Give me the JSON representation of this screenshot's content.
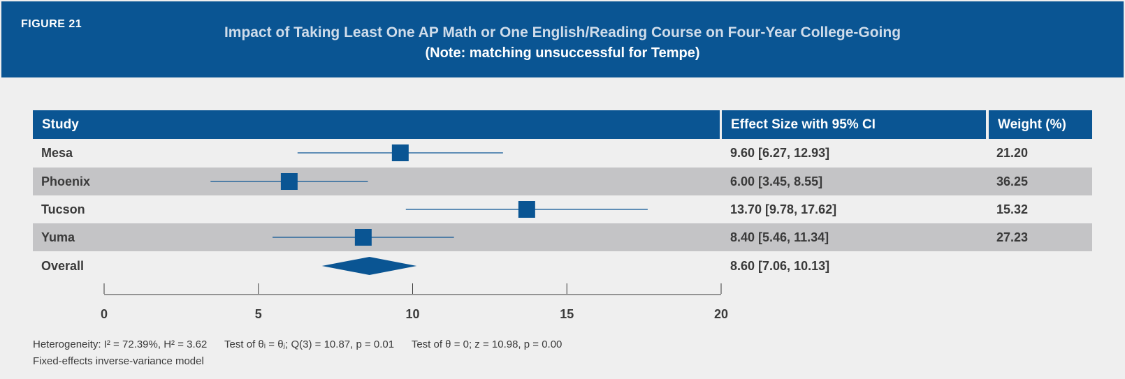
{
  "figure_label": "FIGURE 21",
  "chart_data": {
    "type": "forest",
    "title": "Impact of Taking Least One AP Math or One English/Reading Course on Four-Year College-Going",
    "subtitle": "(Note: matching unsuccessful for Tempe)",
    "columns": {
      "study": "Study",
      "effect": "Effect Size with 95% CI",
      "weight": "Weight (%)"
    },
    "studies": [
      {
        "name": "Mesa",
        "estimate": 9.6,
        "ci_low": 6.27,
        "ci_high": 12.93,
        "effect_label": "9.60 [6.27, 12.93]",
        "weight": "21.20"
      },
      {
        "name": "Phoenix",
        "estimate": 6.0,
        "ci_low": 3.45,
        "ci_high": 8.55,
        "effect_label": "6.00 [3.45, 8.55]",
        "weight": "36.25"
      },
      {
        "name": "Tucson",
        "estimate": 13.7,
        "ci_low": 9.78,
        "ci_high": 17.62,
        "effect_label": "13.70 [9.78, 17.62]",
        "weight": "15.32"
      },
      {
        "name": "Yuma",
        "estimate": 8.4,
        "ci_low": 5.46,
        "ci_high": 11.34,
        "effect_label": "8.40 [5.46, 11.34]",
        "weight": "27.23"
      }
    ],
    "overall": {
      "name": "Overall",
      "estimate": 8.6,
      "ci_low": 7.06,
      "ci_high": 10.13,
      "effect_label": "8.60 [7.06, 10.13]"
    },
    "x_axis": {
      "range": [
        0,
        20
      ],
      "ticks": [
        0,
        5,
        10,
        15,
        20
      ]
    },
    "colors": {
      "marker": "#0a5593",
      "header": "#0a5593",
      "band": "#c4c4c6"
    },
    "footnotes": {
      "heterogeneity": "Heterogeneity: I² = 72.39%, H² = 3.62      Test of θᵢ = θⱼ; Q(3) = 10.87, p = 0.01      Test of θ = 0; z = 10.98, p = 0.00",
      "model": "Fixed-effects inverse-variance model"
    }
  }
}
